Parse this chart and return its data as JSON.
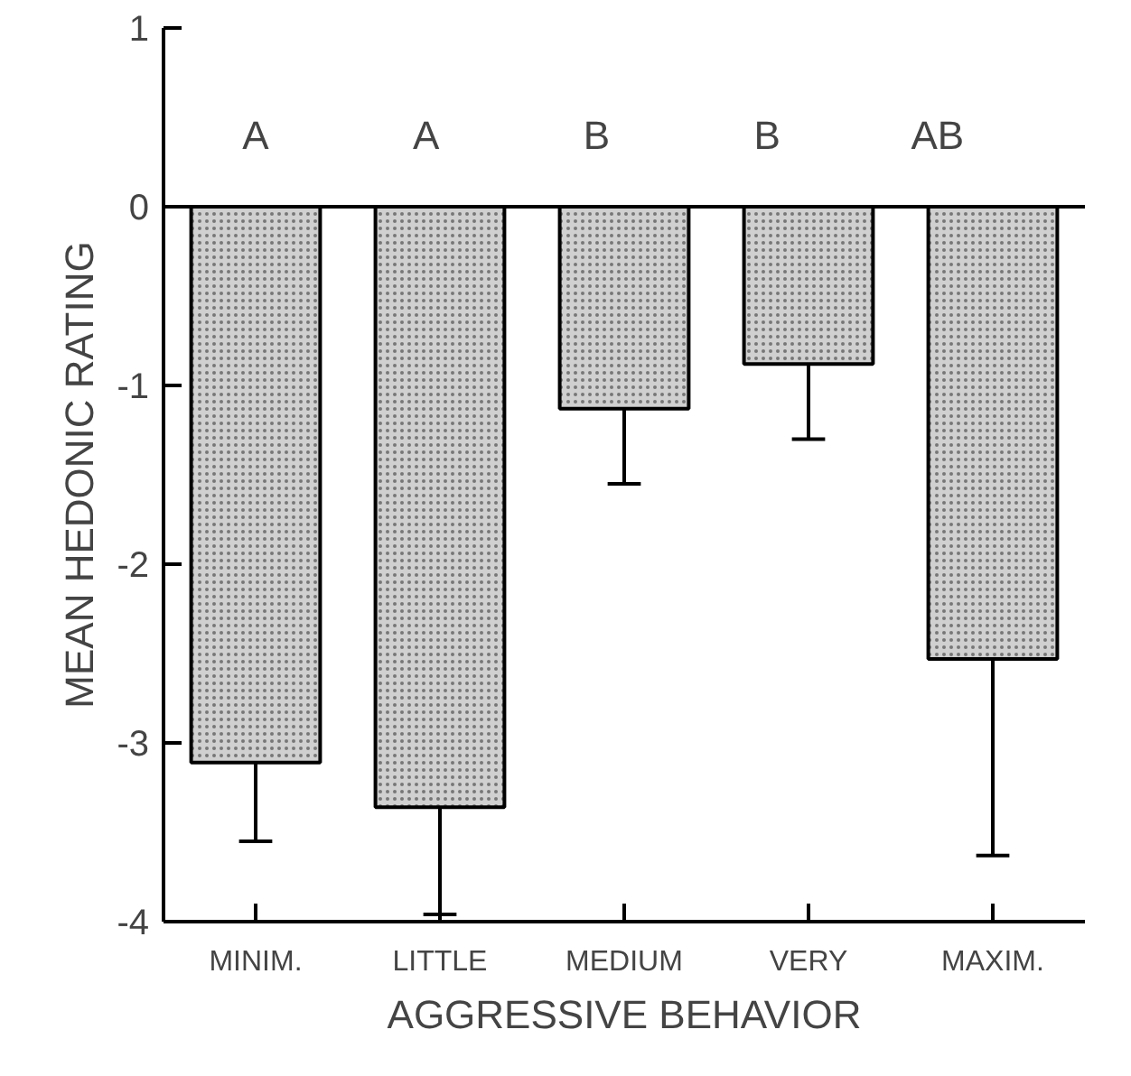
{
  "chart_data": {
    "type": "bar",
    "xlabel": "AGGRESSIVE BEHAVIOR",
    "ylabel": "MEAN HEDONIC RATING",
    "categories": [
      "MINIM.",
      "LITTLE",
      "MEDIUM",
      "VERY",
      "MAXIM."
    ],
    "values": [
      -3.11,
      -3.36,
      -1.13,
      -0.88,
      -2.53
    ],
    "errors": [
      [
        -3.55,
        -3.11
      ],
      [
        -3.96,
        -3.36
      ],
      [
        -1.55,
        -1.13
      ],
      [
        -1.3,
        -0.88
      ],
      [
        -3.63,
        -2.53
      ]
    ],
    "color": "#d0d0d0",
    "ylim": [
      -4,
      1
    ],
    "yticks": [
      -4,
      -3,
      -2,
      -1,
      0,
      1
    ],
    "grid": false,
    "ref_lines": [
      {
        "axis": "y",
        "value": 0
      }
    ],
    "annotations": [
      "A",
      "A",
      "B",
      "B",
      "AB"
    ]
  }
}
